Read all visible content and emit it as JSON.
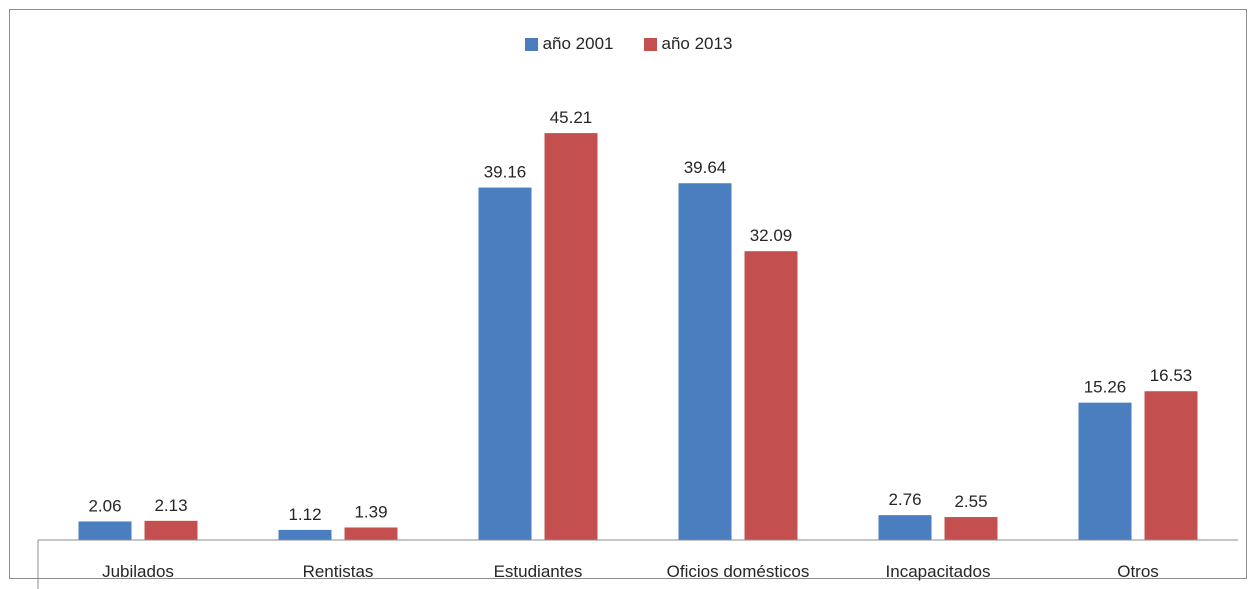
{
  "chart_data": {
    "type": "bar",
    "title": "",
    "xlabel": "",
    "ylabel": "",
    "categories": [
      "Jubilados",
      "Rentistas",
      "Estudiantes",
      "Oficios domésticos",
      "Incapacitados",
      "Otros"
    ],
    "series": [
      {
        "name": "año 2001",
        "color": "#4a7ebf",
        "values": [
          2.06,
          1.12,
          39.16,
          39.64,
          2.76,
          15.26
        ],
        "labels": [
          "2.06",
          "1.12",
          "39.16",
          "39.64",
          "2.76",
          "15.26"
        ]
      },
      {
        "name": "año 2013",
        "color": "#c44f4f",
        "values": [
          2.13,
          1.39,
          45.21,
          32.09,
          2.55,
          16.53
        ],
        "labels": [
          "2.13",
          "1.39",
          "45.21",
          "32.09",
          "2.55",
          "16.53"
        ]
      }
    ],
    "ylim": [
      0,
      50
    ],
    "grid": false,
    "legend": "top-center"
  }
}
